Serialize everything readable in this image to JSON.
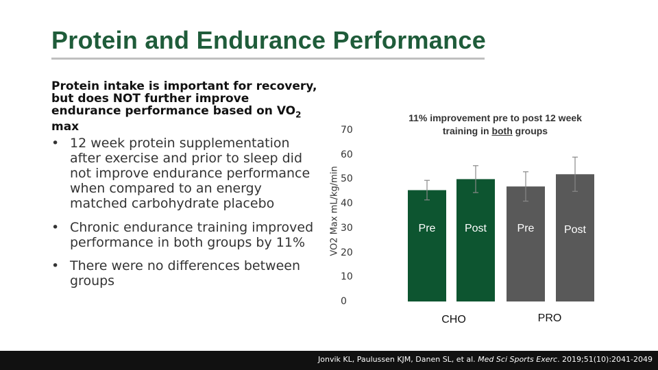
{
  "title": "Protein and Endurance Performance",
  "intro": {
    "text": "Protein intake is important for recovery, but does NOT further improve endurance performance based on VO",
    "subscript": "2",
    "suffix": " max"
  },
  "bullets": [
    "12 week protein supplementation after exercise and prior to sleep did not improve endurance performance when compared to an energy matched carbohydrate placebo",
    "Chronic endurance training improved performance in both groups by 11%",
    "There were no differences between groups"
  ],
  "annotation": {
    "part1": "11% improvement pre to post 12 week training in ",
    "underlined": "both",
    "part2": " groups"
  },
  "chart_data": {
    "type": "bar",
    "ylabel": "VO2 Max mL/kg/min",
    "ylim": [
      0,
      70
    ],
    "yticks": [
      "0",
      "10",
      "20",
      "30",
      "40",
      "50",
      "60",
      "70"
    ],
    "grid": false,
    "bars": [
      {
        "label": "Pre",
        "group": "CHO",
        "value": 45.5,
        "error": 4.0
      },
      {
        "label": "Post",
        "group": "CHO",
        "value": 50.0,
        "error": 5.5
      },
      {
        "label": "Pre",
        "group": "PRO",
        "value": 47.0,
        "error": 6.0
      },
      {
        "label": "Post",
        "group": "PRO",
        "value": 52.0,
        "error": 7.0
      }
    ],
    "groups": [
      "CHO",
      "PRO"
    ],
    "colors": {
      "cho": "#0d5530",
      "pro": "#595959",
      "error_bar": "#888888",
      "bar_label": "#ffffff"
    }
  },
  "footer": {
    "citation_prefix": "Jonvik KL, Paulussen KJM, Danen SL, et al. ",
    "journal": "Med Sci Sports Exerc",
    "citation_suffix": ". 2019;51(10):2041-2049"
  }
}
